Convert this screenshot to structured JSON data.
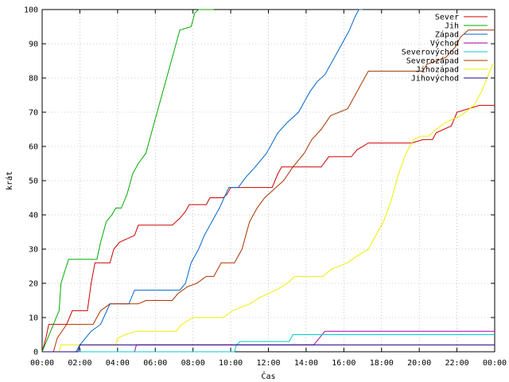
{
  "chart_data": {
    "type": "line",
    "title": "",
    "xlabel": "Čas",
    "ylabel": "krát",
    "xlim": [
      0,
      24
    ],
    "ylim": [
      0,
      100
    ],
    "x_ticks": [
      "00:00",
      "02:00",
      "04:00",
      "06:00",
      "08:00",
      "10:00",
      "12:00",
      "14:00",
      "16:00",
      "18:00",
      "20:00",
      "22:00",
      "00:00"
    ],
    "y_ticks": [
      0,
      10,
      20,
      30,
      40,
      50,
      60,
      70,
      80,
      90,
      100
    ],
    "grid": true,
    "legend_position": "top-right",
    "series": [
      {
        "name": "Sever",
        "color": "#cc0000",
        "points": [
          [
            0,
            0
          ],
          [
            0.2,
            4
          ],
          [
            0.35,
            8
          ],
          [
            1.3,
            8
          ],
          [
            1.6,
            12
          ],
          [
            2.4,
            12
          ],
          [
            2.6,
            20
          ],
          [
            2.8,
            26
          ],
          [
            3.6,
            26
          ],
          [
            3.8,
            30
          ],
          [
            4.1,
            32
          ],
          [
            4.5,
            33
          ],
          [
            4.9,
            34
          ],
          [
            5.1,
            37
          ],
          [
            6.9,
            37
          ],
          [
            7.3,
            39
          ],
          [
            7.6,
            41
          ],
          [
            7.8,
            43
          ],
          [
            8.7,
            43
          ],
          [
            8.9,
            45
          ],
          [
            9.6,
            45
          ],
          [
            9.8,
            46
          ],
          [
            10.0,
            48
          ],
          [
            10.4,
            48
          ],
          [
            12.2,
            48
          ],
          [
            12.5,
            52
          ],
          [
            12.7,
            54
          ],
          [
            14.8,
            54
          ],
          [
            15.2,
            57
          ],
          [
            16.4,
            57
          ],
          [
            16.7,
            59
          ],
          [
            17.3,
            61
          ],
          [
            19.6,
            61
          ],
          [
            20.2,
            62
          ],
          [
            20.7,
            62
          ],
          [
            20.9,
            64
          ],
          [
            21.7,
            66
          ],
          [
            22.0,
            70
          ],
          [
            23.2,
            72
          ],
          [
            24,
            72
          ]
        ]
      },
      {
        "name": "Jih",
        "color": "#00aa00",
        "points": [
          [
            0,
            0
          ],
          [
            0.3,
            4
          ],
          [
            0.6,
            8
          ],
          [
            0.9,
            12
          ],
          [
            1.0,
            20
          ],
          [
            1.4,
            27
          ],
          [
            2.9,
            27
          ],
          [
            3.1,
            32
          ],
          [
            3.4,
            38
          ],
          [
            3.7,
            40
          ],
          [
            3.9,
            42
          ],
          [
            4.2,
            42
          ],
          [
            4.5,
            46
          ],
          [
            4.8,
            52
          ],
          [
            5.1,
            55
          ],
          [
            5.5,
            58
          ],
          [
            5.8,
            64
          ],
          [
            6.2,
            72
          ],
          [
            6.6,
            80
          ],
          [
            7.0,
            88
          ],
          [
            7.3,
            94
          ],
          [
            7.9,
            95
          ],
          [
            8.1,
            99
          ],
          [
            8.3,
            100
          ],
          [
            9.1,
            100
          ]
        ]
      },
      {
        "name": "Západ",
        "color": "#0066cc",
        "points": [
          [
            0,
            0
          ],
          [
            1.8,
            0
          ],
          [
            2.0,
            2
          ],
          [
            2.3,
            4
          ],
          [
            2.6,
            6
          ],
          [
            3.1,
            8
          ],
          [
            3.6,
            14
          ],
          [
            4.6,
            14
          ],
          [
            4.9,
            18
          ],
          [
            7.3,
            18
          ],
          [
            7.6,
            20
          ],
          [
            7.9,
            26
          ],
          [
            8.3,
            30
          ],
          [
            8.6,
            34
          ],
          [
            9.0,
            38
          ],
          [
            9.4,
            42
          ],
          [
            9.9,
            48
          ],
          [
            10.4,
            48
          ],
          [
            10.8,
            51
          ],
          [
            11.3,
            54
          ],
          [
            11.9,
            58
          ],
          [
            12.5,
            64
          ],
          [
            13.0,
            67
          ],
          [
            13.6,
            70
          ],
          [
            14.2,
            76
          ],
          [
            14.6,
            79
          ],
          [
            15.0,
            81
          ],
          [
            15.5,
            86
          ],
          [
            15.9,
            90
          ],
          [
            16.3,
            94
          ],
          [
            16.6,
            98
          ],
          [
            16.8,
            100
          ],
          [
            17.0,
            100
          ]
        ]
      },
      {
        "name": "Východ",
        "color": "#aa00aa",
        "points": [
          [
            0,
            0
          ],
          [
            4.9,
            0
          ],
          [
            5.0,
            2
          ],
          [
            14.4,
            2
          ],
          [
            14.7,
            4
          ],
          [
            15.0,
            6
          ],
          [
            24,
            6
          ]
        ]
      },
      {
        "name": "Severovýchod",
        "color": "#00cccc",
        "points": [
          [
            0,
            0
          ],
          [
            10.2,
            0
          ],
          [
            10.3,
            2
          ],
          [
            10.5,
            3
          ],
          [
            13.1,
            3
          ],
          [
            13.3,
            5
          ],
          [
            24,
            5
          ]
        ]
      },
      {
        "name": "Severozápad",
        "color": "#aa3300",
        "points": [
          [
            0,
            0
          ],
          [
            0.6,
            0
          ],
          [
            0.8,
            4
          ],
          [
            1.3,
            8
          ],
          [
            2.7,
            8
          ],
          [
            3.1,
            12
          ],
          [
            3.6,
            14
          ],
          [
            5.1,
            14
          ],
          [
            5.5,
            15
          ],
          [
            6.9,
            15
          ],
          [
            7.2,
            17
          ],
          [
            7.7,
            19
          ],
          [
            8.2,
            20
          ],
          [
            8.7,
            22
          ],
          [
            9.1,
            22
          ],
          [
            9.5,
            26
          ],
          [
            10.2,
            26
          ],
          [
            10.6,
            30
          ],
          [
            11.0,
            38
          ],
          [
            11.4,
            42
          ],
          [
            11.8,
            45
          ],
          [
            12.4,
            48
          ],
          [
            12.8,
            50
          ],
          [
            13.3,
            54
          ],
          [
            13.9,
            58
          ],
          [
            14.3,
            62
          ],
          [
            14.8,
            65
          ],
          [
            15.3,
            69
          ],
          [
            16.2,
            71
          ],
          [
            16.6,
            75
          ],
          [
            17.0,
            79
          ],
          [
            17.3,
            82
          ],
          [
            20.2,
            82
          ],
          [
            20.4,
            84
          ],
          [
            21.4,
            86
          ],
          [
            21.9,
            89
          ],
          [
            22.2,
            92
          ],
          [
            22.6,
            94
          ],
          [
            24,
            94
          ]
        ]
      },
      {
        "name": "Jihozápad",
        "color": "#eeee00",
        "points": [
          [
            0,
            0
          ],
          [
            0.9,
            0
          ],
          [
            1.0,
            2
          ],
          [
            3.9,
            2
          ],
          [
            4.0,
            4
          ],
          [
            4.4,
            5
          ],
          [
            5.0,
            6
          ],
          [
            7.1,
            6
          ],
          [
            7.4,
            8
          ],
          [
            8.0,
            10
          ],
          [
            9.6,
            10
          ],
          [
            10.1,
            12
          ],
          [
            11.0,
            14
          ],
          [
            11.6,
            16
          ],
          [
            12.4,
            18
          ],
          [
            13.0,
            20
          ],
          [
            13.4,
            22
          ],
          [
            14.9,
            22
          ],
          [
            15.3,
            24
          ],
          [
            16.2,
            26
          ],
          [
            16.7,
            28
          ],
          [
            17.3,
            30
          ],
          [
            17.7,
            34
          ],
          [
            18.1,
            38
          ],
          [
            18.5,
            44
          ],
          [
            18.9,
            52
          ],
          [
            19.3,
            58
          ],
          [
            19.7,
            62
          ],
          [
            20.1,
            63
          ],
          [
            20.5,
            63
          ],
          [
            20.9,
            65
          ],
          [
            21.4,
            67
          ],
          [
            22.2,
            69
          ],
          [
            22.9,
            72
          ],
          [
            23.3,
            76
          ],
          [
            23.6,
            80
          ],
          [
            23.9,
            84
          ],
          [
            24,
            84
          ]
        ]
      },
      {
        "name": "Jihovýchod",
        "color": "#220088",
        "points": [
          [
            0,
            0
          ],
          [
            1.9,
            0
          ],
          [
            2.0,
            2
          ],
          [
            10.4,
            2
          ],
          [
            24,
            2
          ]
        ]
      }
    ]
  }
}
